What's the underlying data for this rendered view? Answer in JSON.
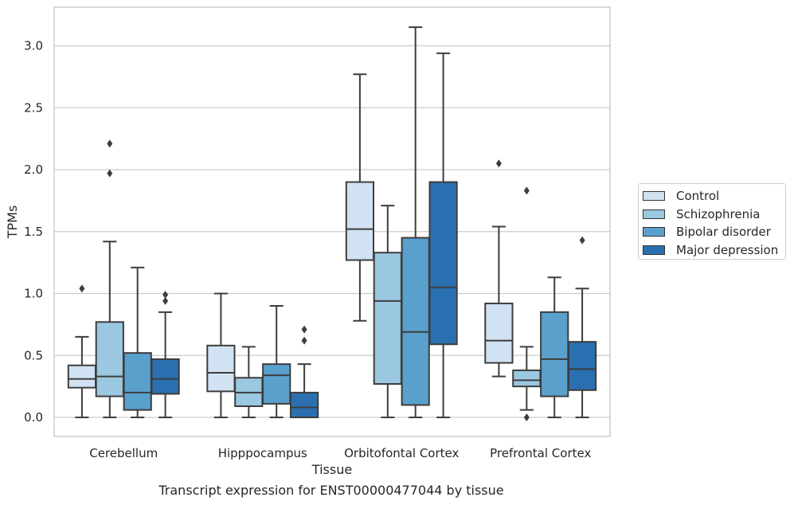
{
  "chart_data": {
    "type": "box",
    "title": "Transcript expression for ENST00000477044 by tissue",
    "xlabel": "Tissue",
    "ylabel": "TPMs",
    "ylim": [
      -0.15,
      3.3
    ],
    "yticks": [
      "0.0",
      "0.5",
      "1.0",
      "1.5",
      "2.0",
      "2.5",
      "3.0"
    ],
    "grid": true,
    "legend_position": "right",
    "categories": [
      "Cerebellum",
      "Hipppocampus",
      "Orbitofontal Cortex",
      "Prefrontal Cortex"
    ],
    "series": [
      {
        "name": "Control",
        "color": "#d1e2f2",
        "boxes": [
          {
            "whislo": 0.0,
            "q1": 0.24,
            "med": 0.31,
            "q3": 0.42,
            "whishi": 0.65,
            "fliers": [
              1.04
            ]
          },
          {
            "whislo": 0.0,
            "q1": 0.21,
            "med": 0.36,
            "q3": 0.58,
            "whishi": 1.0,
            "fliers": []
          },
          {
            "whislo": 0.78,
            "q1": 1.27,
            "med": 1.52,
            "q3": 1.9,
            "whishi": 2.77,
            "fliers": []
          },
          {
            "whislo": 0.33,
            "q1": 0.44,
            "med": 0.62,
            "q3": 0.92,
            "whishi": 1.54,
            "fliers": [
              2.05
            ]
          }
        ]
      },
      {
        "name": "Schizophrenia",
        "color": "#9ac8e0",
        "boxes": [
          {
            "whislo": 0.0,
            "q1": 0.17,
            "med": 0.33,
            "q3": 0.77,
            "whishi": 1.42,
            "fliers": [
              1.97,
              2.21
            ]
          },
          {
            "whislo": 0.0,
            "q1": 0.09,
            "med": 0.2,
            "q3": 0.32,
            "whishi": 0.57,
            "fliers": []
          },
          {
            "whislo": 0.0,
            "q1": 0.27,
            "med": 0.94,
            "q3": 1.33,
            "whishi": 1.71,
            "fliers": []
          },
          {
            "whislo": 0.06,
            "q1": 0.25,
            "med": 0.3,
            "q3": 0.38,
            "whishi": 0.57,
            "fliers": [
              0.0,
              1.83
            ]
          }
        ]
      },
      {
        "name": "Bipolar disorder",
        "color": "#5aa0cd",
        "boxes": [
          {
            "whislo": 0.0,
            "q1": 0.06,
            "med": 0.2,
            "q3": 0.52,
            "whishi": 1.21,
            "fliers": []
          },
          {
            "whislo": 0.0,
            "q1": 0.11,
            "med": 0.34,
            "q3": 0.43,
            "whishi": 0.9,
            "fliers": []
          },
          {
            "whislo": 0.0,
            "q1": 0.1,
            "med": 0.69,
            "q3": 1.45,
            "whishi": 3.15,
            "fliers": []
          },
          {
            "whislo": 0.0,
            "q1": 0.17,
            "med": 0.47,
            "q3": 0.85,
            "whishi": 1.13,
            "fliers": []
          }
        ]
      },
      {
        "name": "Major depression",
        "color": "#2a70b0",
        "boxes": [
          {
            "whislo": 0.0,
            "q1": 0.19,
            "med": 0.31,
            "q3": 0.47,
            "whishi": 0.85,
            "fliers": [
              0.94,
              0.99
            ]
          },
          {
            "whislo": 0.0,
            "q1": 0.0,
            "med": 0.08,
            "q3": 0.2,
            "whishi": 0.43,
            "fliers": [
              0.62,
              0.71
            ]
          },
          {
            "whislo": 0.0,
            "q1": 0.59,
            "med": 1.05,
            "q3": 1.9,
            "whishi": 2.94,
            "fliers": []
          },
          {
            "whislo": 0.0,
            "q1": 0.22,
            "med": 0.39,
            "q3": 0.61,
            "whishi": 1.04,
            "fliers": [
              1.43
            ]
          }
        ]
      }
    ]
  }
}
